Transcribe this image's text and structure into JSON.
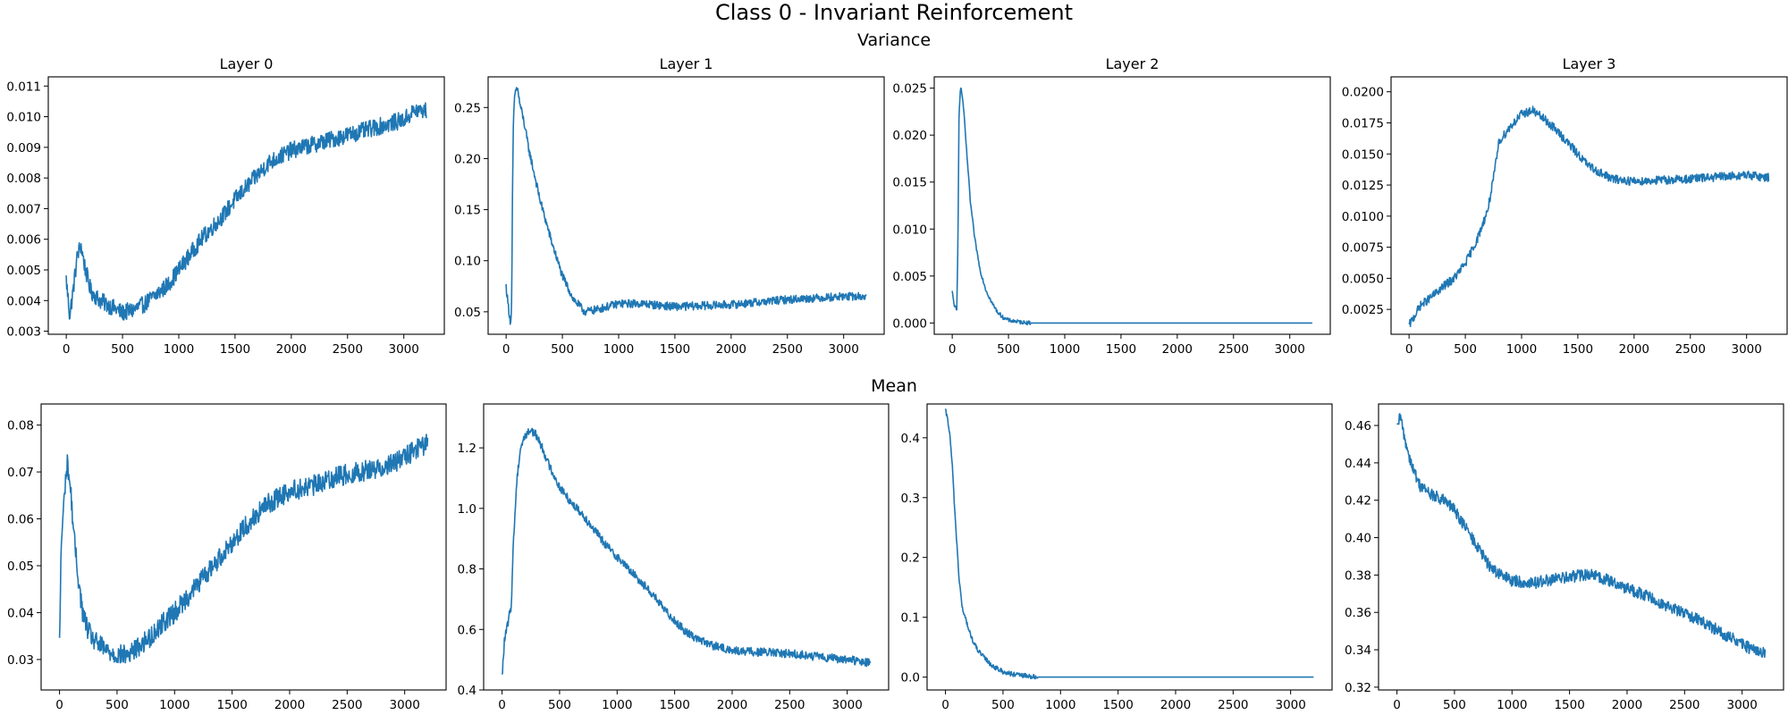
{
  "figure": {
    "title": "Class 0 - Invariant Reinforcement",
    "row_titles": [
      "Variance",
      "Mean"
    ],
    "line_color": "#1f77b4"
  },
  "chart_data": [
    {
      "type": "line",
      "row": "Variance",
      "title": "Layer 0",
      "xlim": [
        -160,
        3360
      ],
      "ylim": [
        0.0029,
        0.0113
      ],
      "xticks": [
        0,
        500,
        1000,
        1500,
        2000,
        2500,
        3000
      ],
      "yticks": [
        0.003,
        0.004,
        0.005,
        0.006,
        0.007,
        0.008,
        0.009,
        0.01,
        0.011
      ],
      "ytick_labels": [
        "0.003",
        "0.004",
        "0.005",
        "0.006",
        "0.007",
        "0.008",
        "0.009",
        "0.010",
        "0.011"
      ],
      "noise": 0.00028,
      "series": [
        {
          "x": [
            0,
            30,
            60,
            100,
            130,
            170,
            220,
            300,
            400,
            500,
            600,
            700,
            800,
            900,
            1000,
            1100,
            1200,
            1300,
            1400,
            1500,
            1600,
            1700,
            1800,
            1900,
            2000,
            2200,
            2400,
            2600,
            2800,
            3000,
            3100,
            3200
          ],
          "y": [
            0.0047,
            0.0035,
            0.0043,
            0.0055,
            0.0058,
            0.005,
            0.0043,
            0.004,
            0.0038,
            0.0036,
            0.0037,
            0.0039,
            0.0042,
            0.0045,
            0.005,
            0.0055,
            0.006,
            0.0064,
            0.0068,
            0.0073,
            0.0077,
            0.0081,
            0.0085,
            0.0087,
            0.0089,
            0.0091,
            0.0093,
            0.0095,
            0.0097,
            0.0099,
            0.0102,
            0.0102
          ]
        }
      ]
    },
    {
      "type": "line",
      "row": "Variance",
      "title": "Layer 1",
      "xlim": [
        -160,
        3360
      ],
      "ylim": [
        0.028,
        0.28
      ],
      "xticks": [
        0,
        500,
        1000,
        1500,
        2000,
        2500,
        3000
      ],
      "yticks": [
        0.05,
        0.1,
        0.15,
        0.2,
        0.25
      ],
      "ytick_labels": [
        "0.05",
        "0.10",
        "0.15",
        "0.20",
        "0.25"
      ],
      "noise": 0.004,
      "series": [
        {
          "x": [
            0,
            20,
            40,
            50,
            55,
            65,
            80,
            100,
            120,
            160,
            200,
            300,
            400,
            500,
            600,
            700,
            800,
            1000,
            1200,
            1500,
            2000,
            2500,
            3000,
            3200
          ],
          "y": [
            0.075,
            0.055,
            0.038,
            0.06,
            0.15,
            0.24,
            0.265,
            0.27,
            0.255,
            0.235,
            0.21,
            0.16,
            0.12,
            0.085,
            0.062,
            0.05,
            0.052,
            0.058,
            0.058,
            0.055,
            0.057,
            0.062,
            0.065,
            0.065
          ]
        }
      ]
    },
    {
      "type": "line",
      "row": "Variance",
      "title": "Layer 2",
      "xlim": [
        -160,
        3360
      ],
      "ylim": [
        -0.0012,
        0.0262
      ],
      "xticks": [
        0,
        500,
        1000,
        1500,
        2000,
        2500,
        3000
      ],
      "yticks": [
        0.0,
        0.005,
        0.01,
        0.015,
        0.02,
        0.025
      ],
      "ytick_labels": [
        "0.000",
        "0.005",
        "0.010",
        "0.015",
        "0.020",
        "0.025"
      ],
      "noise": 0.0002,
      "series": [
        {
          "x": [
            0,
            20,
            40,
            50,
            60,
            70,
            80,
            100,
            130,
            160,
            200,
            250,
            300,
            350,
            400,
            450,
            500,
            600,
            700,
            800,
            1000,
            2000,
            3200
          ],
          "y": [
            0.0033,
            0.0018,
            0.0013,
            0.008,
            0.022,
            0.0245,
            0.025,
            0.023,
            0.018,
            0.013,
            0.009,
            0.0055,
            0.0035,
            0.0022,
            0.0012,
            0.0006,
            0.0003,
            0.0001,
            0.0,
            0.0,
            0.0,
            0.0,
            0.0
          ]
        }
      ]
    },
    {
      "type": "line",
      "row": "Variance",
      "title": "Layer 3",
      "xlim": [
        -160,
        3360
      ],
      "ylim": [
        0.0005,
        0.0212
      ],
      "xticks": [
        0,
        500,
        1000,
        1500,
        2000,
        2500,
        3000
      ],
      "yticks": [
        0.0025,
        0.005,
        0.0075,
        0.01,
        0.0125,
        0.015,
        0.0175,
        0.02
      ],
      "ytick_labels": [
        "0.0025",
        "0.0050",
        "0.0075",
        "0.0100",
        "0.0125",
        "0.0150",
        "0.0175",
        "0.0200"
      ],
      "noise": 0.00035,
      "series": [
        {
          "x": [
            0,
            50,
            100,
            200,
            300,
            400,
            500,
            600,
            700,
            750,
            800,
            900,
            1000,
            1100,
            1200,
            1300,
            1400,
            1500,
            1600,
            1700,
            1800,
            2000,
            2500,
            3000,
            3200
          ],
          "y": [
            0.0012,
            0.002,
            0.0028,
            0.0035,
            0.0043,
            0.005,
            0.0062,
            0.008,
            0.0105,
            0.013,
            0.016,
            0.0172,
            0.0182,
            0.0185,
            0.0178,
            0.017,
            0.016,
            0.015,
            0.014,
            0.0135,
            0.013,
            0.0128,
            0.013,
            0.0133,
            0.0131
          ]
        }
      ]
    },
    {
      "type": "line",
      "row": "Mean",
      "title": "",
      "xlim": [
        -160,
        3360
      ],
      "ylim": [
        0.0235,
        0.0845
      ],
      "xticks": [
        0,
        500,
        1000,
        1500,
        2000,
        2500,
        3000
      ],
      "yticks": [
        0.03,
        0.04,
        0.05,
        0.06,
        0.07,
        0.08
      ],
      "ytick_labels": [
        "0.03",
        "0.04",
        "0.05",
        "0.06",
        "0.07",
        "0.08"
      ],
      "noise": 0.0022,
      "series": [
        {
          "x": [
            0,
            15,
            30,
            50,
            70,
            100,
            130,
            160,
            200,
            250,
            300,
            400,
            500,
            600,
            700,
            800,
            900,
            1000,
            1200,
            1400,
            1600,
            1800,
            2000,
            2200,
            2400,
            2600,
            2800,
            3000,
            3100,
            3200
          ],
          "y": [
            0.033,
            0.055,
            0.06,
            0.068,
            0.072,
            0.065,
            0.055,
            0.048,
            0.04,
            0.036,
            0.034,
            0.032,
            0.031,
            0.031,
            0.033,
            0.035,
            0.038,
            0.04,
            0.046,
            0.052,
            0.058,
            0.063,
            0.066,
            0.067,
            0.069,
            0.07,
            0.071,
            0.073,
            0.075,
            0.076
          ]
        }
      ]
    },
    {
      "type": "line",
      "row": "Mean",
      "title": "",
      "xlim": [
        -160,
        3360
      ],
      "ylim": [
        0.4,
        1.345
      ],
      "xticks": [
        0,
        500,
        1000,
        1500,
        2000,
        2500,
        3000
      ],
      "yticks": [
        0.4,
        0.6,
        0.8,
        1.0,
        1.2
      ],
      "ytick_labels": [
        "0.4",
        "0.6",
        "0.8",
        "1.0",
        "1.2"
      ],
      "noise": 0.014,
      "series": [
        {
          "x": [
            0,
            20,
            50,
            80,
            100,
            130,
            160,
            200,
            250,
            300,
            350,
            400,
            500,
            600,
            700,
            800,
            900,
            1000,
            1100,
            1200,
            1300,
            1400,
            1500,
            1600,
            1700,
            1800,
            2000,
            2500,
            3000,
            3200
          ],
          "y": [
            0.44,
            0.56,
            0.62,
            0.68,
            0.9,
            1.1,
            1.2,
            1.24,
            1.26,
            1.24,
            1.2,
            1.15,
            1.07,
            1.02,
            0.98,
            0.93,
            0.88,
            0.84,
            0.8,
            0.76,
            0.72,
            0.67,
            0.63,
            0.59,
            0.57,
            0.55,
            0.53,
            0.52,
            0.5,
            0.49
          ]
        }
      ]
    },
    {
      "type": "line",
      "row": "Mean",
      "title": "",
      "xlim": [
        -160,
        3360
      ],
      "ylim": [
        -0.0215,
        0.4565
      ],
      "xticks": [
        0,
        500,
        1000,
        1500,
        2000,
        2500,
        3000
      ],
      "yticks": [
        0.0,
        0.1,
        0.2,
        0.3,
        0.4
      ],
      "ytick_labels": [
        "0.0",
        "0.1",
        "0.2",
        "0.3",
        "0.4"
      ],
      "noise": 0.004,
      "series": [
        {
          "x": [
            0,
            20,
            40,
            60,
            80,
            100,
            120,
            150,
            180,
            200,
            250,
            300,
            350,
            400,
            450,
            500,
            600,
            700,
            800,
            1000,
            2000,
            3200
          ],
          "y": [
            0.445,
            0.43,
            0.4,
            0.35,
            0.28,
            0.22,
            0.16,
            0.11,
            0.095,
            0.08,
            0.055,
            0.04,
            0.03,
            0.02,
            0.014,
            0.009,
            0.004,
            0.002,
            0.0,
            0.0,
            0.0,
            0.0
          ]
        }
      ]
    },
    {
      "type": "line",
      "row": "Mean",
      "title": "",
      "xlim": [
        -160,
        3360
      ],
      "ylim": [
        0.3185,
        0.4715
      ],
      "xticks": [
        0,
        500,
        1000,
        1500,
        2000,
        2500,
        3000
      ],
      "yticks": [
        0.32,
        0.34,
        0.36,
        0.38,
        0.4,
        0.42,
        0.44,
        0.46
      ],
      "ytick_labels": [
        "0.32",
        "0.34",
        "0.36",
        "0.38",
        "0.40",
        "0.42",
        "0.44",
        "0.46"
      ],
      "noise": 0.0032,
      "series": [
        {
          "x": [
            0,
            30,
            60,
            100,
            150,
            200,
            300,
            400,
            500,
            600,
            700,
            800,
            900,
            1000,
            1100,
            1200,
            1400,
            1600,
            1700,
            1800,
            2000,
            2200,
            2400,
            2600,
            2800,
            3000,
            3100,
            3200
          ],
          "y": [
            0.458,
            0.465,
            0.455,
            0.445,
            0.435,
            0.428,
            0.423,
            0.42,
            0.415,
            0.405,
            0.395,
            0.385,
            0.38,
            0.377,
            0.376,
            0.376,
            0.378,
            0.38,
            0.38,
            0.378,
            0.373,
            0.368,
            0.362,
            0.357,
            0.35,
            0.343,
            0.34,
            0.338
          ]
        }
      ]
    }
  ]
}
